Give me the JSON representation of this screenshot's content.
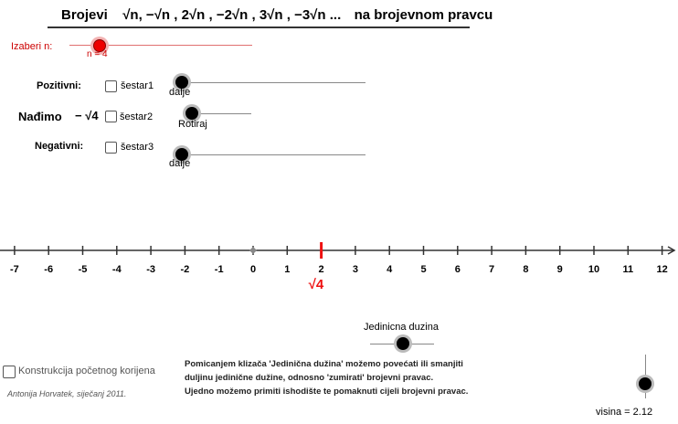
{
  "title": {
    "part1": "Brojevi",
    "part2": "√n, −√n , 2√n , −2√n , 3√n , −3√n ...",
    "part3": "na brojevnom pravcu"
  },
  "n_slider": {
    "label": "Izaberi n:",
    "value_text": "n = 4",
    "value": 4,
    "color": "#cc0000"
  },
  "rows": [
    {
      "label": "Pozitivni:",
      "checkbox_label": "šestar1",
      "slider_caption": "dalje"
    },
    {
      "label": "Nađimo",
      "expr": "− √4",
      "checkbox_label": "šestar2",
      "slider_caption": "Rotiraj"
    },
    {
      "label": "Negativni:",
      "checkbox_label": "šestar3",
      "slider_caption": "dalje"
    }
  ],
  "number_line": {
    "ticks": [
      -7,
      -6,
      -5,
      -4,
      -3,
      -2,
      -1,
      0,
      1,
      2,
      3,
      4,
      5,
      6,
      7,
      8,
      9,
      10,
      11,
      12
    ],
    "marked_value": 2,
    "marked_label": "√4",
    "marked_color": "#ee1111"
  },
  "unit_slider": {
    "label": "Jedinicna duzina"
  },
  "note_lines": [
    "Pomicanjem klizača 'Jedinična dužina' možemo povećati ili smanjiti",
    "duljinu jedinične dužine, odnosno 'zumirati' brojevni pravac.",
    "Ujedno možemo primiti ishodište te pomaknuti cijeli brojevni pravac."
  ],
  "construction_checkbox": {
    "label": "Konstrukcija početnog korijena"
  },
  "author": "Antonija Horvatek, siječanj 2011.",
  "height_slider": {
    "value_text": "visina = 2.12"
  }
}
